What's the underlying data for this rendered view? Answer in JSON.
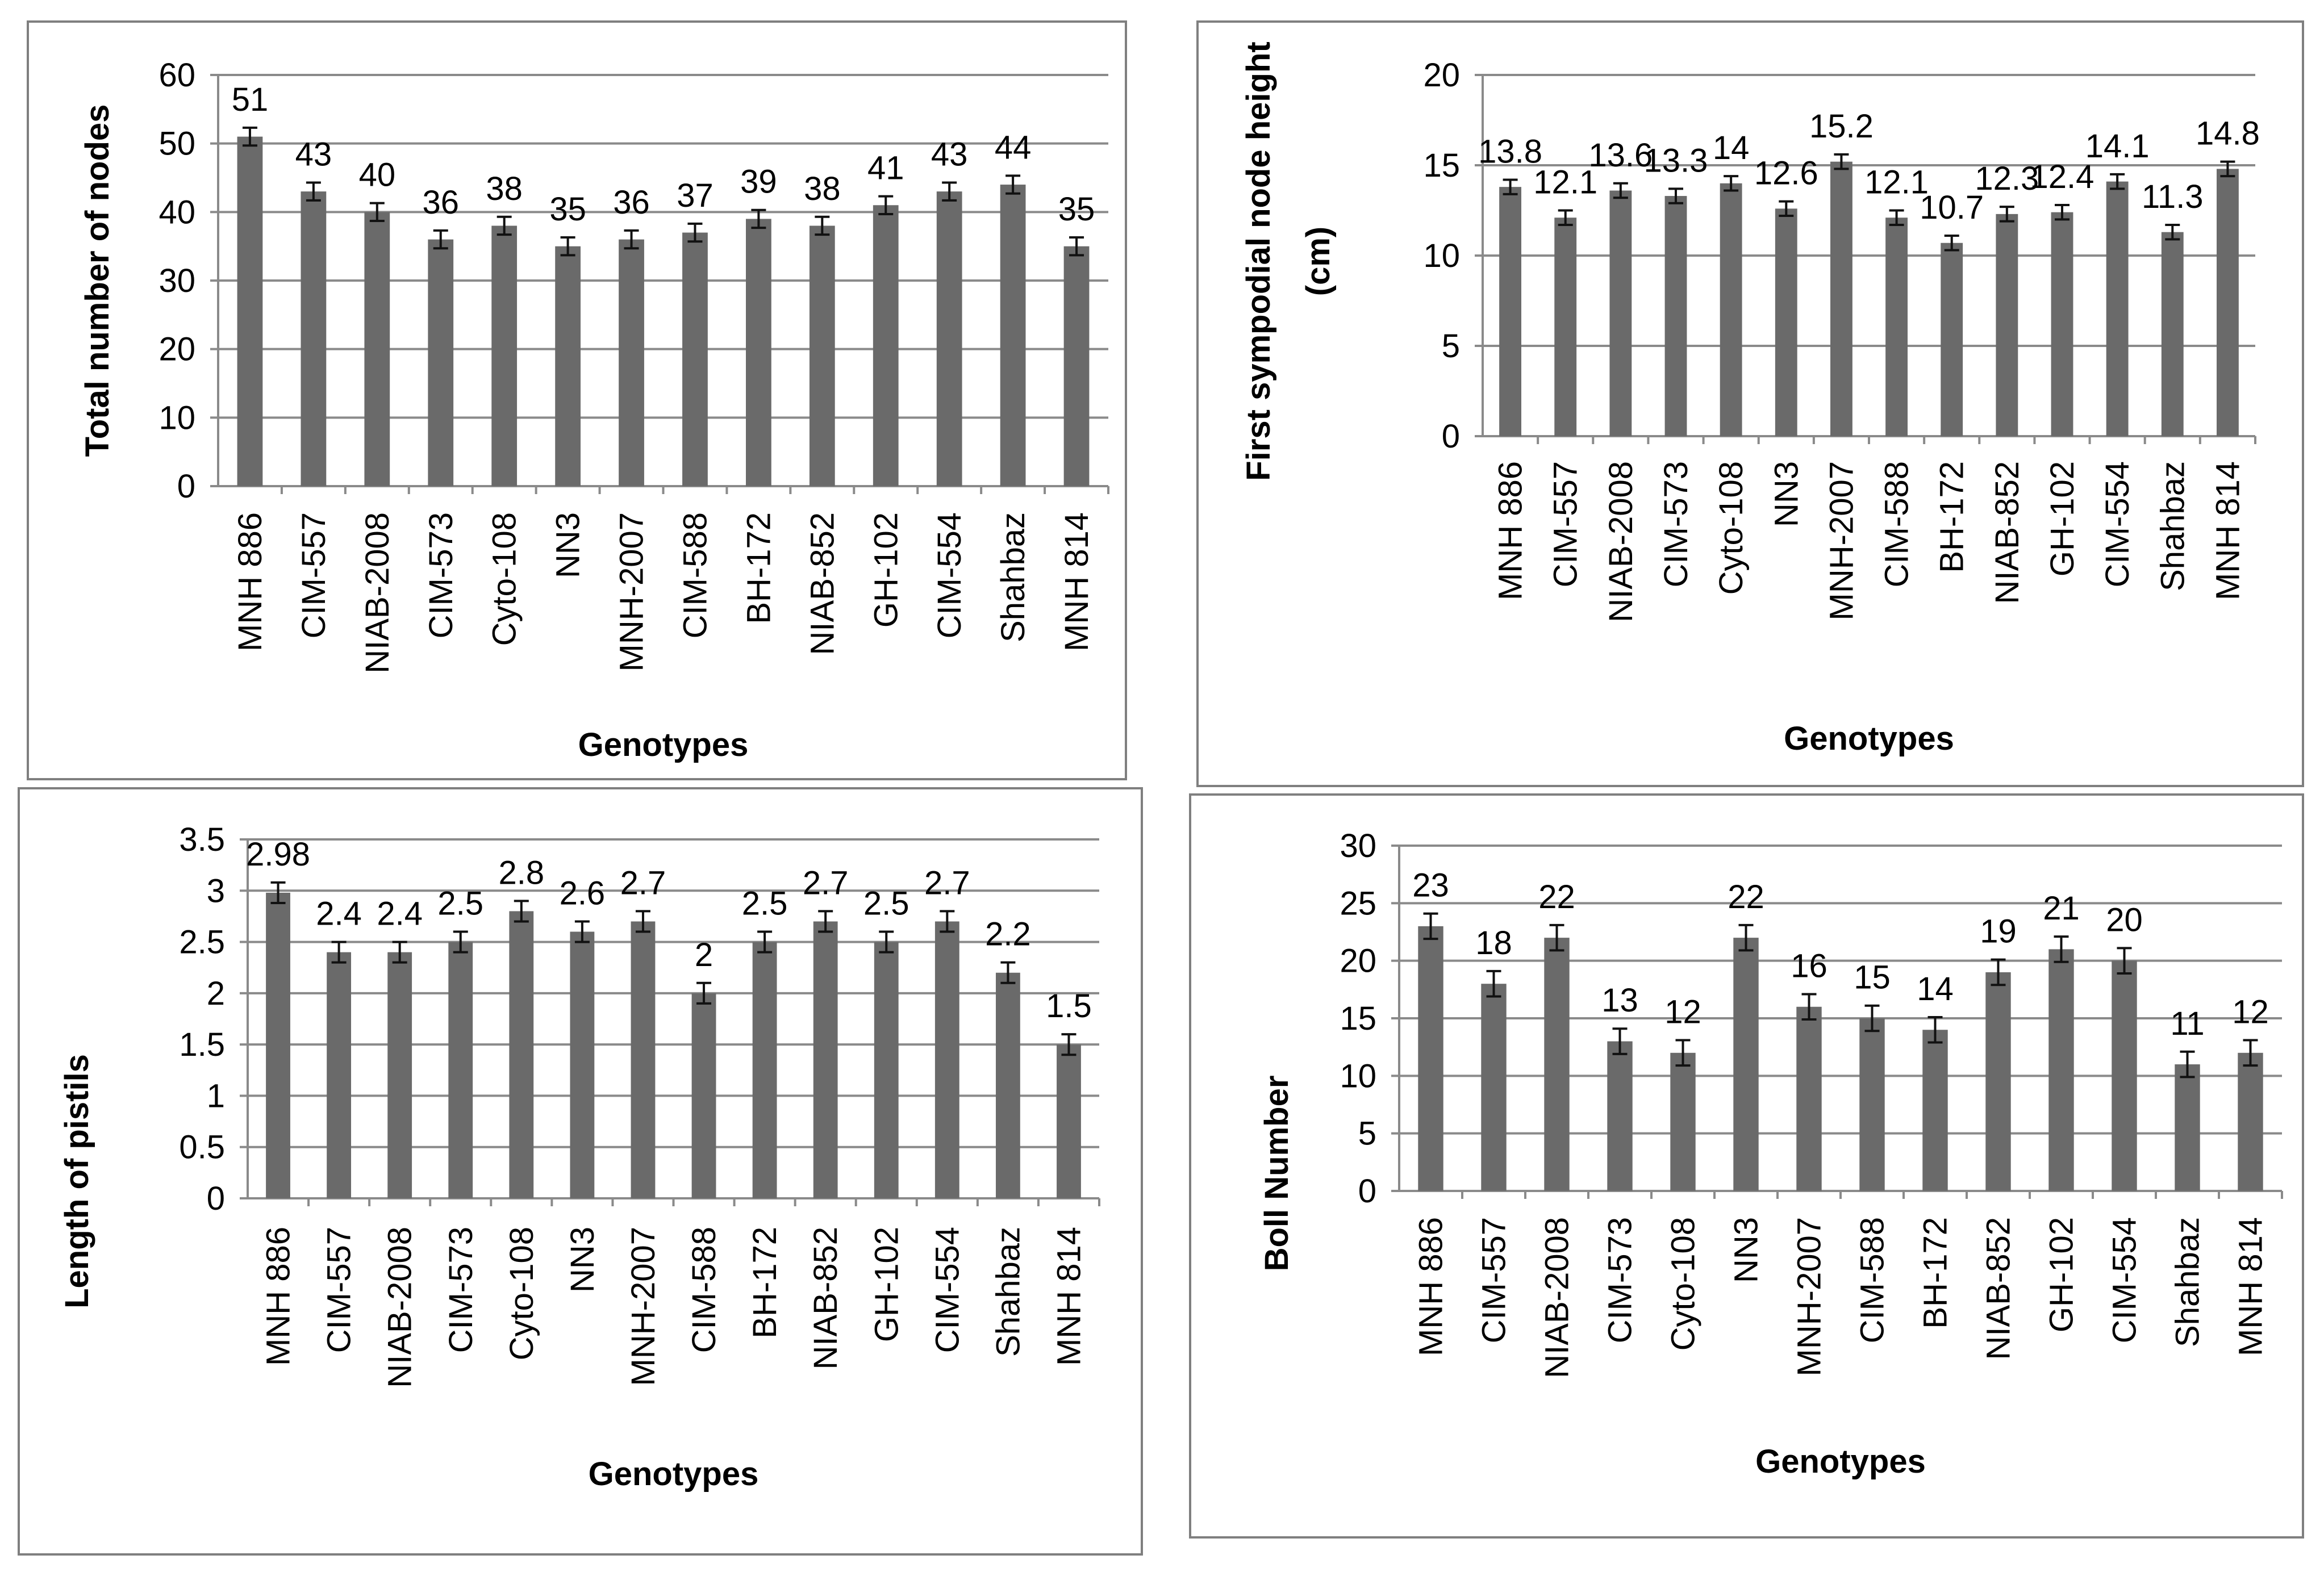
{
  "chart_data": [
    {
      "type": "bar",
      "title": "",
      "xlabel": "Genotypes",
      "ylabel": "Total number of nodes",
      "ylim": [
        0,
        60
      ],
      "ytick_step": 10,
      "ytick_labels": [
        "0",
        "10",
        "20",
        "30",
        "40",
        "50",
        "60"
      ],
      "grid": true,
      "error_bar": 1.3,
      "categories": [
        "MNH 886",
        "CIM-557",
        "NIAB-2008",
        "CIM-573",
        "Cyto-108",
        "NN3",
        "MNH-2007",
        "CIM-588",
        "BH-172",
        "NIAB-852",
        "GH-102",
        "CIM-554",
        "Shahbaz",
        "MNH 814"
      ],
      "values": [
        51,
        43,
        40,
        36,
        38,
        35,
        36,
        37,
        39,
        38,
        41,
        43,
        44,
        35
      ],
      "data_labels": [
        "51",
        "43",
        "40",
        "36",
        "38",
        "35",
        "36",
        "37",
        "39",
        "38",
        "41",
        "43",
        "44",
        "35"
      ],
      "bar_color": "#6a6a6a"
    },
    {
      "type": "bar",
      "title": "",
      "xlabel": "Genotypes",
      "ylabel_lines": [
        "First sympodial node height",
        "(cm)"
      ],
      "ylim": [
        0,
        20
      ],
      "ytick_step": 5,
      "ytick_labels": [
        "0",
        "5",
        "10",
        "15",
        "20"
      ],
      "grid": true,
      "error_bar": 0.4,
      "categories": [
        "MNH 886",
        "CIM-557",
        "NIAB-2008",
        "CIM-573",
        "Cyto-108",
        "NN3",
        "MNH-2007",
        "CIM-588",
        "BH-172",
        "NIAB-852",
        "GH-102",
        "CIM-554",
        "Shahbaz",
        "MNH 814"
      ],
      "values": [
        13.8,
        12.1,
        13.6,
        13.3,
        14,
        12.6,
        15.2,
        12.1,
        10.7,
        12.3,
        12.4,
        14.1,
        11.3,
        14.8
      ],
      "data_labels": [
        "13.8",
        "12.1",
        "13.6",
        "13.3",
        "14",
        "12.6",
        "15.2",
        "12.1",
        "10.7",
        "12.3",
        "12.4",
        "14.1",
        "11.3",
        "14.8"
      ],
      "bar_color": "#6a6a6a"
    },
    {
      "type": "bar",
      "title": "",
      "xlabel": "Genotypes",
      "ylabel": "Length of  pistils",
      "ylim": [
        0,
        3.5
      ],
      "ytick_step": 0.5,
      "ytick_labels": [
        "0",
        "0.5",
        "1",
        "1.5",
        "2",
        "2.5",
        "3",
        "3.5"
      ],
      "grid": true,
      "error_bar": 0.1,
      "categories": [
        "MNH 886",
        "CIM-557",
        "NIAB-2008",
        "CIM-573",
        "Cyto-108",
        "NN3",
        "MNH-2007",
        "CIM-588",
        "BH-172",
        "NIAB-852",
        "GH-102",
        "CIM-554",
        "Shahbaz",
        "MNH 814"
      ],
      "values": [
        2.98,
        2.4,
        2.4,
        2.5,
        2.8,
        2.6,
        2.7,
        2,
        2.5,
        2.7,
        2.5,
        2.7,
        2.2,
        1.5
      ],
      "data_labels": [
        "2.98",
        "2.4",
        "2.4",
        "2.5",
        "2.8",
        "2.6",
        "2.7",
        "2",
        "2.5",
        "2.7",
        "2.5",
        "2.7",
        "2.2",
        "1.5"
      ],
      "bar_color": "#6a6a6a"
    },
    {
      "type": "bar",
      "title": "",
      "xlabel": "Genotypes",
      "ylabel": "Boll Number",
      "ylim": [
        0,
        30
      ],
      "ytick_step": 5,
      "ytick_labels": [
        "0",
        "5",
        "10",
        "15",
        "20",
        "25",
        "30"
      ],
      "grid": true,
      "error_bar": 1.1,
      "categories": [
        "MNH 886",
        "CIM-557",
        "NIAB-2008",
        "CIM-573",
        "Cyto-108",
        "NN3",
        "MNH-2007",
        "CIM-588",
        "BH-172",
        "NIAB-852",
        "GH-102",
        "CIM-554",
        "Shahbaz",
        "MNH 814"
      ],
      "values": [
        23,
        18,
        22,
        13,
        12,
        22,
        16,
        15,
        14,
        19,
        21,
        20,
        11,
        12
      ],
      "data_labels": [
        "23",
        "18",
        "22",
        "13",
        "12",
        "22",
        "16",
        "15",
        "14",
        "19",
        "21",
        "20",
        "11",
        "12"
      ],
      "bar_color": "#6a6a6a"
    }
  ]
}
